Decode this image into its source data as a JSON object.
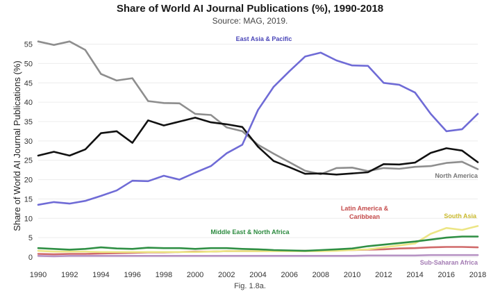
{
  "chart_data": {
    "type": "line",
    "title": "Share of World AI Journal Publications (%), 1990-2018",
    "subtitle": "Source: MAG, 2019.",
    "caption": "Fig. 1.8a.",
    "ylabel": "Share of World AI Journal Publications (%)",
    "xlabel": "",
    "xlim": [
      1990,
      2018
    ],
    "ylim": [
      0,
      56
    ],
    "x_ticks": [
      1990,
      1992,
      1994,
      1996,
      1998,
      2000,
      2002,
      2004,
      2006,
      2008,
      2010,
      2012,
      2014,
      2016,
      2018
    ],
    "y_ticks": [
      0,
      5,
      10,
      15,
      20,
      25,
      30,
      35,
      40,
      45,
      50,
      55
    ],
    "grid": "horizontal",
    "x": [
      1990,
      1991,
      1992,
      1993,
      1994,
      1995,
      1996,
      1997,
      1998,
      1999,
      2000,
      2001,
      2002,
      2003,
      2004,
      2005,
      2006,
      2007,
      2008,
      2009,
      2010,
      2011,
      2012,
      2013,
      2014,
      2015,
      2016,
      2017,
      2018
    ],
    "series": [
      {
        "name": "East Asia & Pacific",
        "color": "#6f6bd6",
        "label_color": "#4a46b8",
        "values": [
          13.5,
          14.2,
          13.8,
          14.5,
          15.8,
          17.2,
          19.7,
          19.6,
          21.0,
          20.0,
          21.8,
          23.5,
          26.8,
          29.0,
          38.0,
          44.0,
          48.0,
          51.8,
          52.8,
          50.8,
          49.5,
          49.4,
          45.0,
          44.5,
          42.5,
          37.0,
          32.5,
          33.0,
          37.0
        ]
      },
      {
        "name": "North America",
        "color": "#8e8e8e",
        "label_color": "#777777",
        "values": [
          55.7,
          54.8,
          55.7,
          53.5,
          47.3,
          45.6,
          46.2,
          40.3,
          39.8,
          39.7,
          37.0,
          36.7,
          33.5,
          32.5,
          29.0,
          26.7,
          24.5,
          22.3,
          21.4,
          23.0,
          23.1,
          22.2,
          23.0,
          22.8,
          23.3,
          23.5,
          24.3,
          24.6,
          22.7
        ]
      },
      {
        "name": "",
        "color": "#111111",
        "label_color": "#111111",
        "values": [
          26.2,
          27.2,
          26.2,
          27.8,
          32.0,
          32.5,
          29.5,
          35.3,
          34.0,
          35.0,
          36.0,
          34.8,
          34.3,
          33.6,
          28.5,
          24.8,
          23.2,
          21.5,
          21.6,
          21.3,
          21.6,
          21.9,
          24.0,
          23.9,
          24.4,
          26.9,
          28.1,
          27.5,
          24.5
        ]
      },
      {
        "name": "Latin America & Caribbean",
        "color": "#d06a6a",
        "label_color": "#c44a4a",
        "values": [
          0.8,
          0.7,
          0.8,
          0.8,
          0.9,
          1.0,
          1.1,
          1.2,
          1.2,
          1.3,
          1.4,
          1.4,
          1.5,
          1.5,
          1.5,
          1.6,
          1.6,
          1.6,
          1.6,
          1.7,
          1.8,
          1.9,
          2.0,
          2.2,
          2.3,
          2.5,
          2.6,
          2.6,
          2.5
        ]
      },
      {
        "name": "South Asia",
        "color": "#ece585",
        "label_color": "#c9b92e",
        "values": [
          1.6,
          1.4,
          1.4,
          1.4,
          1.3,
          1.3,
          1.3,
          1.3,
          1.3,
          1.3,
          1.3,
          1.4,
          1.5,
          1.5,
          1.5,
          1.5,
          1.5,
          1.5,
          1.5,
          1.6,
          1.8,
          2.0,
          2.5,
          3.0,
          3.5,
          6.0,
          7.5,
          7.0,
          8.0
        ]
      },
      {
        "name": "Middle East & North Africa",
        "color": "#2f8f44",
        "label_color": "#2b8a3e",
        "values": [
          2.3,
          2.1,
          1.9,
          2.1,
          2.5,
          2.2,
          2.1,
          2.4,
          2.3,
          2.3,
          2.1,
          2.3,
          2.3,
          2.1,
          2.0,
          1.8,
          1.7,
          1.6,
          1.8,
          2.0,
          2.2,
          2.8,
          3.2,
          3.6,
          4.0,
          4.5,
          5.0,
          5.3,
          5.3
        ]
      },
      {
        "name": "Sub-Saharan Africa",
        "color": "#b793c4",
        "label_color": "#a37bb3",
        "values": [
          0.3,
          0.2,
          0.3,
          0.3,
          0.3,
          0.3,
          0.3,
          0.3,
          0.3,
          0.3,
          0.3,
          0.3,
          0.3,
          0.3,
          0.3,
          0.3,
          0.3,
          0.3,
          0.3,
          0.3,
          0.3,
          0.4,
          0.4,
          0.4,
          0.4,
          0.5,
          0.5,
          0.5,
          0.5
        ]
      }
    ],
    "annotations": [
      {
        "text": "East Asia & Pacific",
        "series": "East Asia & Pacific"
      },
      {
        "text": "North America",
        "series": "North America"
      },
      {
        "text": "Latin America &",
        "series": "Latin America & Caribbean"
      },
      {
        "text": "Caribbean",
        "series": "Latin America & Caribbean"
      },
      {
        "text": "South Asia",
        "series": "South Asia"
      },
      {
        "text": "Middle East & North Africa",
        "series": "Middle East & North Africa"
      },
      {
        "text": "Sub-Saharan Africa",
        "series": "Sub-Saharan Africa"
      }
    ]
  }
}
